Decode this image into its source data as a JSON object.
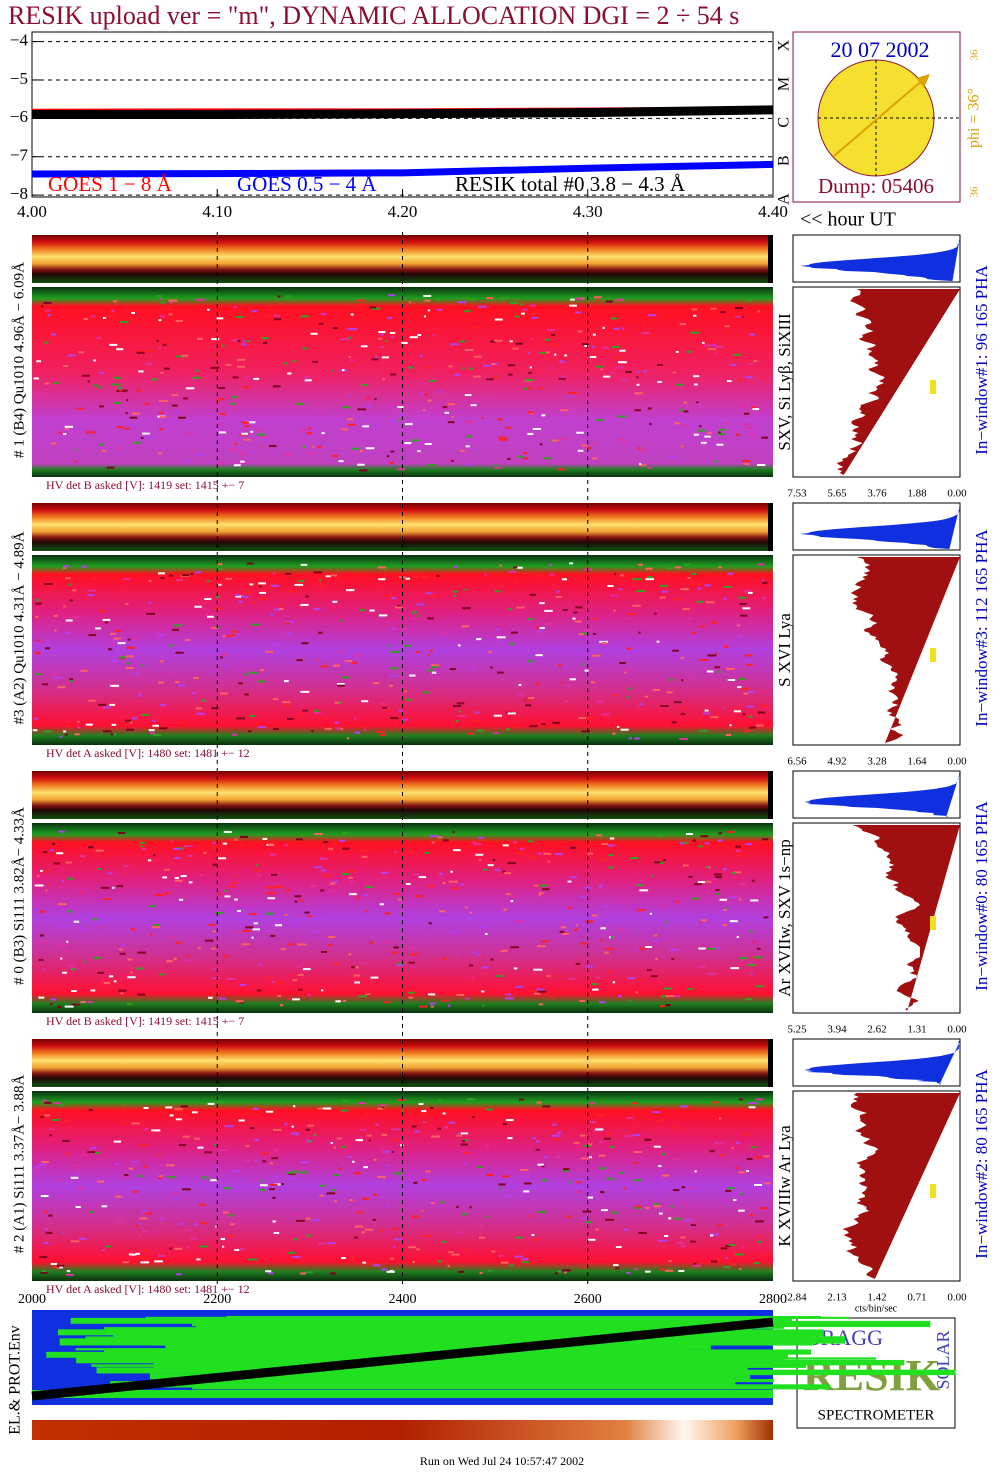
{
  "header": {
    "title": "RESIK upload ver = \"m\", DYNAMIC ALLOCATION  DGI =   2 ÷  54 s"
  },
  "chart_data": {
    "type": "line",
    "x": [
      4.0,
      4.1,
      4.2,
      4.3,
      4.4
    ],
    "series": [
      {
        "name": "GOES 1 − 8 Å",
        "color": "#ff0000",
        "values": [
          -5.84,
          -5.83,
          -5.83,
          -5.81,
          -5.78
        ]
      },
      {
        "name": "GOES 0.5 − 4 Å",
        "color": "#0000ff",
        "values": [
          -7.45,
          -7.44,
          -7.42,
          -7.3,
          -7.2
        ]
      },
      {
        "name": "RESIK total #0  3.8 − 4.3 Å",
        "color": "#000000",
        "values": [
          -5.9,
          -5.9,
          -5.88,
          -5.85,
          -5.78
        ]
      }
    ],
    "xlim": [
      4.0,
      4.4
    ],
    "xticks": [
      {
        "value": 4.0,
        "label": "4.00"
      },
      {
        "value": 4.1,
        "label": "4.10"
      },
      {
        "value": 4.2,
        "label": "4.20"
      },
      {
        "value": 4.3,
        "label": "4.30"
      },
      {
        "value": 4.4,
        "label": "4.40"
      }
    ],
    "ylim": [
      -8.05,
      -3.75
    ],
    "yticks": [
      {
        "value": -4,
        "label": "−4"
      },
      {
        "value": -5,
        "label": "−5"
      },
      {
        "value": -6,
        "label": "−6"
      },
      {
        "value": -7,
        "label": "−7"
      },
      {
        "value": -8,
        "label": "−8"
      }
    ],
    "xlabel": "<< hour UT",
    "grid": true
  },
  "goes_classes": [
    "A",
    "B",
    "C",
    "M",
    "X"
  ],
  "sun": {
    "date": "20 07 2002",
    "phi": "phi = 36°",
    "lat_top": "36",
    "lat_bottom": "36",
    "dump": "Dump: 05406"
  },
  "panels": [
    {
      "label": "# 1 (B4) Qu1010 4.96Å − 6.09Å",
      "lines": "SXV, Si Lyβ, SiXIII",
      "hv": "HV det B asked [V]:  1419 set:  1415 +−    7",
      "window": "In−window#1:   96 165 PHA",
      "hist_ticks": [
        "7.53",
        "5.65",
        "3.76",
        "1.88",
        "0.00"
      ]
    },
    {
      "label": "#3 (A2) Qu1010  4.31Å − 4.89Å",
      "lines": "S XVI Lya",
      "hv": "HV det A asked [V]:  1480 set:  1481 +−    12",
      "window": "In−window#3:  112 165 PHA",
      "hist_ticks": [
        "6.56",
        "4.92",
        "3.28",
        "1.64",
        "0.00"
      ]
    },
    {
      "label": "# 0 (B3) Si111  3.82Å− 4.33Å",
      "lines": "Ar XVIIw, SXV 1s−np",
      "hv": "HV det B asked [V]:  1419 set:  1415 +−    7",
      "window": "In−window#0:   80 165 PHA",
      "hist_ticks": [
        "5.25",
        "3.94",
        "2.62",
        "1.31",
        "0.00"
      ]
    },
    {
      "label": "# 2 (A1) Si111  3.37Å− 3.88Å",
      "lines": "K XVIIIw  Ar Lya",
      "hv": "HV det A asked [V]:  1480 set:  1481 +−    12",
      "window": "In−window#2:   80 165 PHA",
      "hist_ticks": [
        "2.84",
        "2.13",
        "1.42",
        "0.71",
        "0.00"
      ]
    }
  ],
  "hist_unit": "cts/bin/sec",
  "bottom_axis": [
    "2000",
    "2200",
    "2400",
    "2600",
    "2800"
  ],
  "env_label": "EL.& PROT.Env",
  "logo": {
    "bragg": "BRAGG",
    "resik": "RESIK",
    "solar": "SOLAR",
    "spectrometer": "SPECTROMETER"
  },
  "footer": "Run on Wed Jul 24 10:57:47 2002"
}
